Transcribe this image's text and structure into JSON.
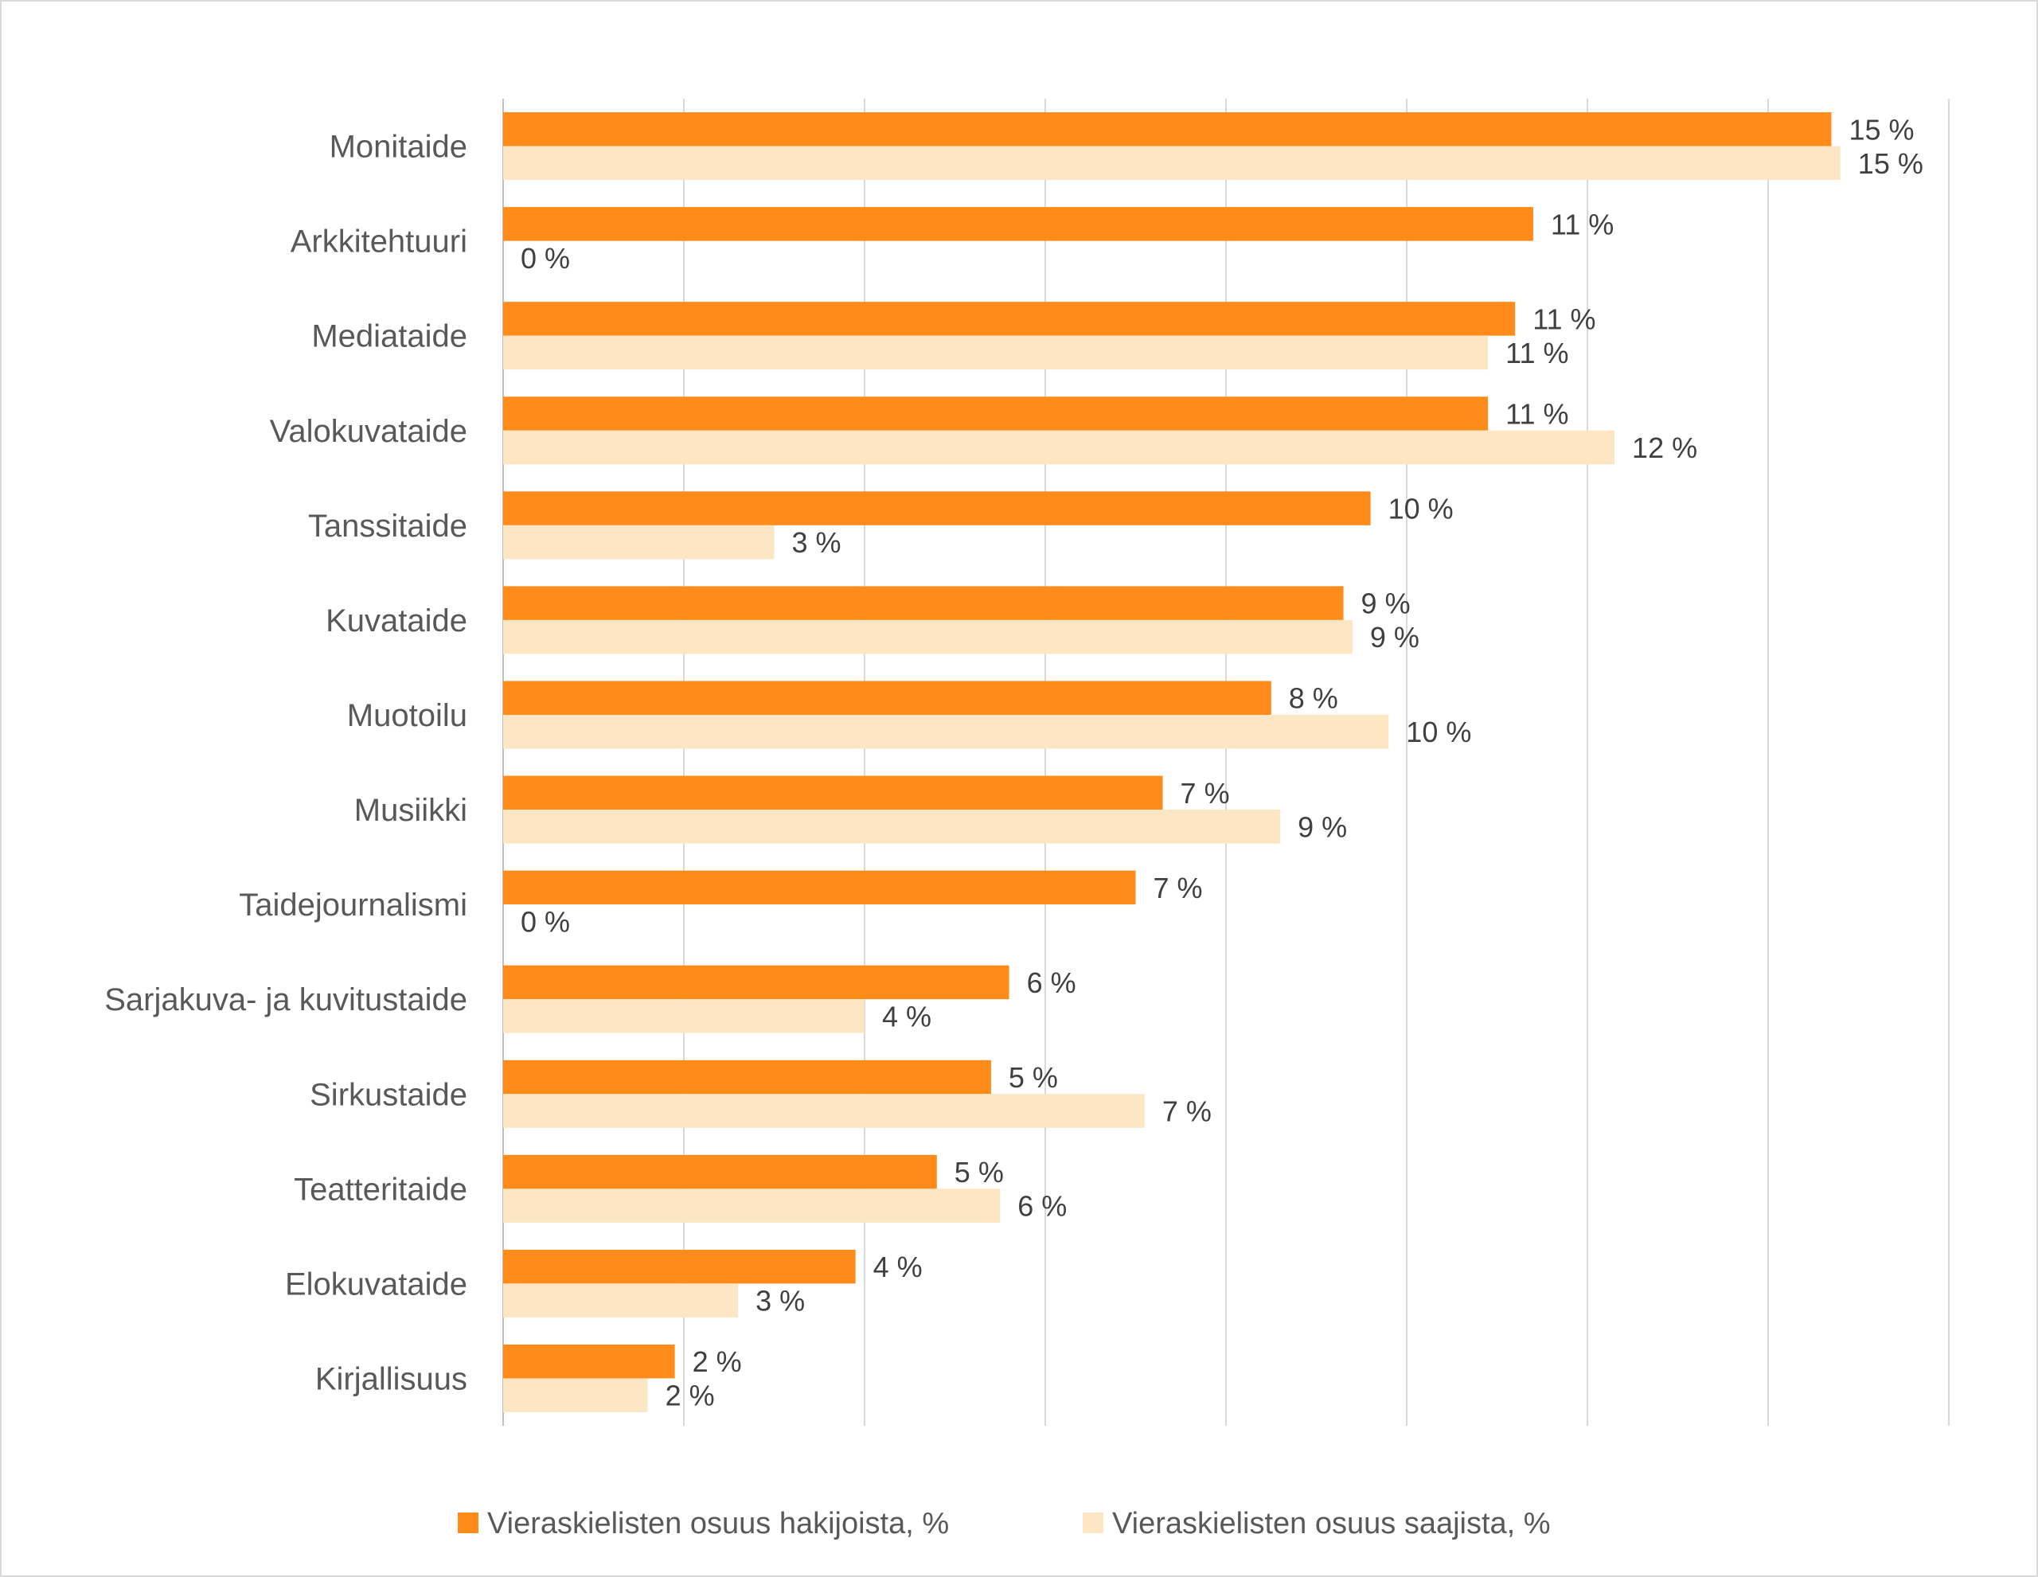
{
  "chart_data": {
    "type": "bar",
    "orientation": "horizontal",
    "title": "",
    "xlabel": "",
    "ylabel": "",
    "xlim": [
      0,
      16
    ],
    "grid": true,
    "legend_position": "bottom",
    "categories": [
      "Monitaide",
      "Arkkitehtuuri",
      "Mediataide",
      "Valokuvataide",
      "Tanssitaide",
      "Kuvataide",
      "Muotoilu",
      "Musiikki",
      "Taidejournalismi",
      "Sarjakuva- ja kuvitustaide",
      "Sirkustaide",
      "Teatteritaide",
      "Elokuvataide",
      "Kirjallisuus"
    ],
    "series": [
      {
        "name": "Vieraskielisten osuus hakijoista, %",
        "color": "#FF8C1A",
        "values": [
          14.7,
          11.4,
          11.2,
          10.9,
          9.6,
          9.3,
          8.5,
          7.3,
          7.0,
          5.6,
          5.4,
          4.8,
          3.9,
          1.9
        ],
        "labels": [
          "15 %",
          "11 %",
          "11 %",
          "11 %",
          "10 %",
          "9 %",
          "8 %",
          "7 %",
          "7 %",
          "6 %",
          "5 %",
          "5 %",
          "4 %",
          "2 %"
        ]
      },
      {
        "name": "Vieraskielisten osuus saajista, %",
        "color": "#FDE6C4",
        "values": [
          14.8,
          0,
          10.9,
          12.3,
          3.0,
          9.4,
          9.8,
          8.6,
          0,
          4.0,
          7.1,
          5.5,
          2.6,
          1.6
        ],
        "labels": [
          "15 %",
          "0 %",
          "11 %",
          "12 %",
          "3 %",
          "9 %",
          "10 %",
          "9 %",
          "0 %",
          "4 %",
          "7 %",
          "6 %",
          "3 %",
          "2 %"
        ]
      }
    ]
  }
}
